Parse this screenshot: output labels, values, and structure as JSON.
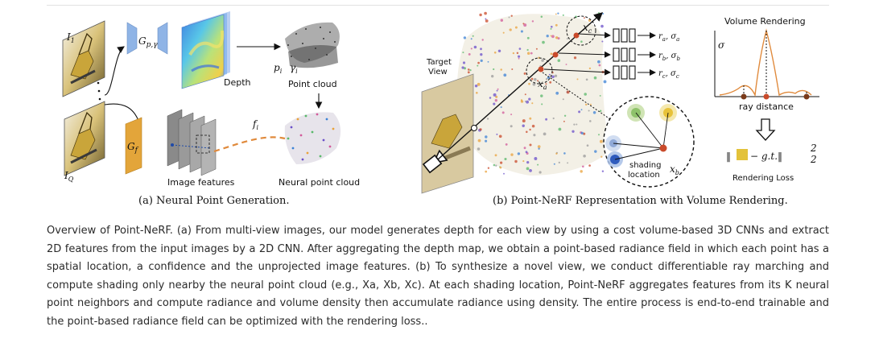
{
  "figure": {
    "panel_a": {
      "caption": "(a) Neural Point Generation.",
      "label_i1": "I",
      "label_i1_sub": "1",
      "label_iq": "I",
      "label_iq_sub": "Q",
      "label_gp": "G",
      "label_gp_sub": "p,γ",
      "label_gf": "G",
      "label_gf_sub": "f",
      "label_depth": "Depth",
      "label_pi_gamma": "p",
      "label_pi_gamma_sub": "i",
      "label_gamma": "γ",
      "label_gamma_sub": "i",
      "label_point_cloud": "Point cloud",
      "label_fi": "f",
      "label_fi_sub": "i",
      "label_image_features": "Image features",
      "label_neural_point_cloud": "Neural point cloud"
    },
    "panel_b": {
      "caption": "(b) Point-NeRF Representation with Volume Rendering.",
      "label_target_view_1": "Target",
      "label_target_view_2": "View",
      "label_xc": "x",
      "label_xc_sub": "c",
      "label_xa": "x",
      "label_xa_sub": "a",
      "label_xb": "x",
      "label_xb_sub": "b",
      "label_out_a": "r",
      "label_out_a_sub": "a",
      "label_out_a_sigma": ", σ",
      "label_out_b": "r",
      "label_out_b_sub": "b",
      "label_out_b_sigma": ", σ",
      "label_out_c": "r",
      "label_out_c_sub": "c",
      "label_out_c_sigma": ", σ",
      "label_shading_1": "shading",
      "label_shading_2": "location",
      "label_volume_rendering": "Volume Rendering",
      "label_sigma": "σ",
      "label_ray_distance": "ray distance",
      "label_loss_formula_left": "‖",
      "label_loss_formula_right": "− g.t.‖",
      "label_loss_sup": "2",
      "label_loss_sub": "2",
      "label_rendering_loss": "Rendering Loss"
    }
  },
  "description": "Overview of Point-NeRF. (a) From multi-view images, our model generates depth for each view by using a cost volume-based 3D CNNs and extract 2D features from the input images by a 2D CNN. After aggregating the depth map, we obtain a point-based radiance field in which each point has a spatial location, a confidence and the unprojected image features. (b) To synthesize a novel view, we conduct differentiable ray marching and compute shading only nearby the neural point cloud (e.g., Xa, Xb, Xc). At each shading location, Point-NeRF aggregates features from its K neural point neighbors and compute radiance and volume density then accumulate radiance using density. The entire process is end-to-end trainable and the point-based radiance field can be optimized with the rendering loss..",
  "colors": {
    "encoder_blue": "#8fb4e6",
    "feature_orange": "#e3a53a",
    "curve_orange": "#e08a3c",
    "point_red": "#c94a2a"
  }
}
